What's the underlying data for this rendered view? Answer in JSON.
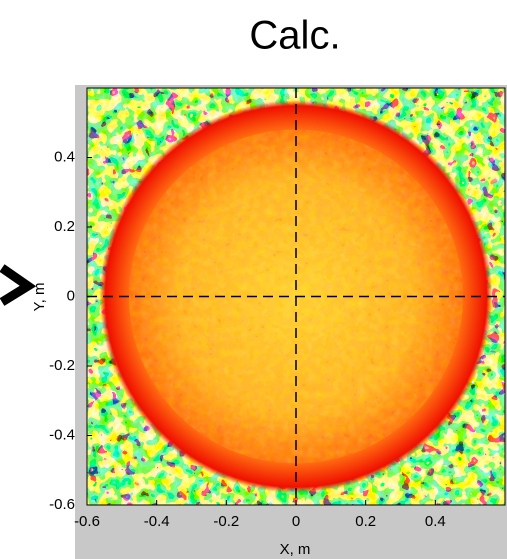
{
  "chart_data": {
    "type": "heatmap",
    "title": "Calc.",
    "x_label": "X, m",
    "y_label": "Y, m",
    "xlim": [
      -0.6,
      0.6
    ],
    "ylim": [
      -0.6,
      0.6
    ],
    "xticks": [
      -0.6,
      -0.4,
      -0.2,
      0,
      0.2,
      0.4
    ],
    "yticks": [
      -0.6,
      -0.4,
      -0.2,
      0,
      0.2,
      0.4
    ],
    "crosshair": {
      "x": 0,
      "y": 0
    }
  }
}
